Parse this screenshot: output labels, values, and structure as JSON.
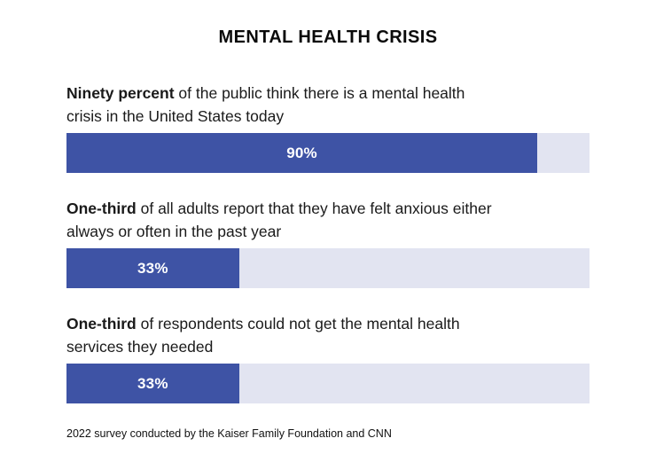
{
  "colors": {
    "bar_fill": "#3E53A5",
    "bar_track": "#E2E4F1",
    "bar_label": "#FFFFFF",
    "text": "#111111"
  },
  "chart_data": {
    "type": "bar",
    "orientation": "horizontal",
    "title": "MENTAL HEALTH CRISIS",
    "unit": "%",
    "xlim": [
      0,
      100
    ],
    "values": [
      90,
      33,
      33
    ],
    "grid": false,
    "legend": false,
    "items": [
      {
        "lead": "Ninety percent",
        "rest": " of the public think there is a mental health\ncrisis in the United States today",
        "value": 90,
        "label": "90%"
      },
      {
        "lead": "One-third",
        "rest": " of all adults report that they have felt anxious either\nalways or often in the past year",
        "value": 33,
        "label": "33%"
      },
      {
        "lead": "One-third",
        "rest": " of respondents could not get the mental health\nservices they needed",
        "value": 33,
        "label": "33%"
      }
    ],
    "source": "2022 survey conducted by the Kaiser Family Foundation and CNN"
  }
}
